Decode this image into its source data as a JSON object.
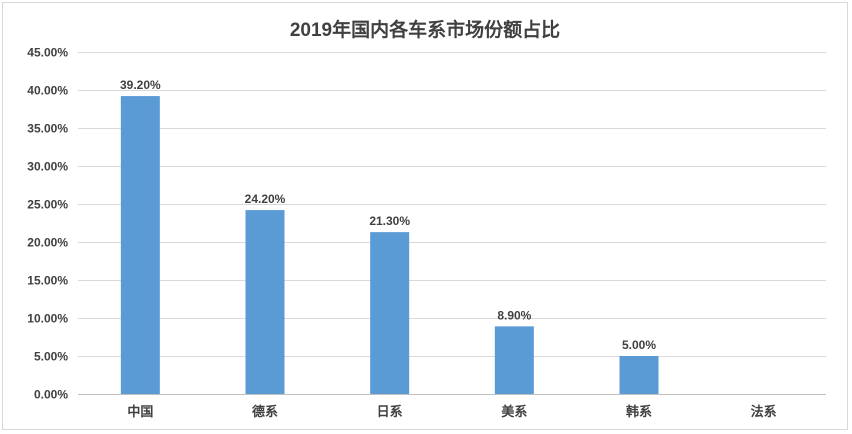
{
  "chart_data": {
    "type": "bar",
    "title": "2019年国内各车系市场份额占比",
    "categories": [
      "中国",
      "德系",
      "日系",
      "美系",
      "韩系",
      "法系"
    ],
    "values": [
      39.2,
      24.2,
      21.3,
      8.9,
      5.0,
      0
    ],
    "data_labels": [
      "39.20%",
      "24.20%",
      "21.30%",
      "8.90%",
      "5.00%",
      ""
    ],
    "ylim": [
      0,
      45
    ],
    "yticks": [
      "0.00%",
      "5.00%",
      "10.00%",
      "15.00%",
      "20.00%",
      "25.00%",
      "30.00%",
      "35.00%",
      "40.00%",
      "45.00%"
    ],
    "grid": true,
    "bar_color": "#5b9bd5"
  }
}
